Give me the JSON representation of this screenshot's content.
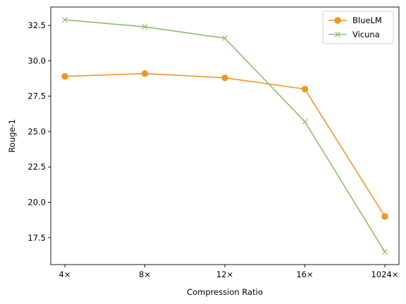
{
  "chart_data": {
    "type": "line",
    "categories": [
      "4×",
      "8×",
      "12×",
      "16×",
      "1024×"
    ],
    "series": [
      {
        "name": "BlueLM",
        "values": [
          28.9,
          29.1,
          28.8,
          28.0,
          19.0
        ],
        "color": "#f0962a",
        "marker": "circle"
      },
      {
        "name": "Vicuna",
        "values": [
          32.9,
          32.4,
          31.6,
          25.7,
          16.5
        ],
        "color": "#8fbc6a",
        "marker": "x"
      }
    ],
    "xlabel": "Compression Ratio",
    "ylabel": "Rouge-1",
    "ylim": [
      15.6,
      33.8
    ],
    "yticks": [
      17.5,
      20.0,
      22.5,
      25.0,
      27.5,
      30.0,
      32.5
    ],
    "ytick_labels": [
      "17.5",
      "20.0",
      "22.5",
      "25.0",
      "27.5",
      "30.0",
      "32.5"
    ],
    "grid": false,
    "legend_position": "top-right"
  }
}
